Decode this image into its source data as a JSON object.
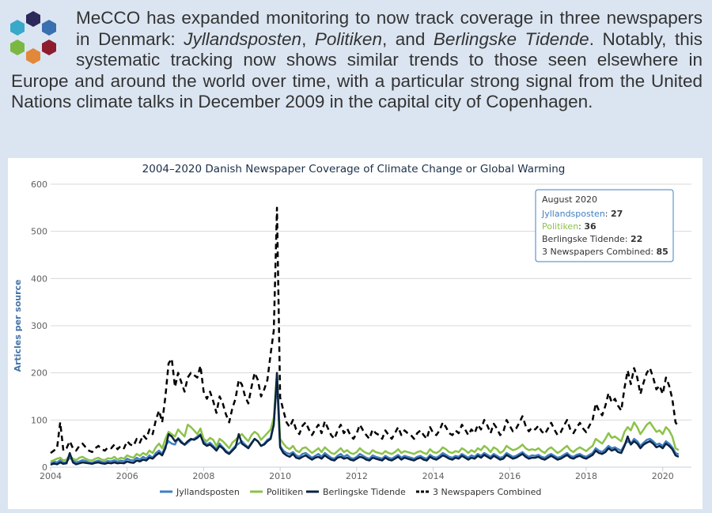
{
  "intro": {
    "p1": "MeCCO has expanded monitoring to now track coverage in three newspapers in Denmark: ",
    "paper1": "Jyllandsposten",
    "sep1": ", ",
    "paper2": "Politiken",
    "sep2": ", and ",
    "paper3": "Berlingske Tidende",
    "p2": ". Notably, this systematic tracking now shows similar trends to those seen elsewhere in Europe and around the world over time, with a particular strong signal from the United Nations climate talks in December 2009 in the capital city of Copenhagen."
  },
  "logo": {
    "colors": [
      "#2c2a5a",
      "#39a9c9",
      "#3a6fb0",
      "#7ab843",
      "#e2883a",
      "#8e1c2f"
    ]
  },
  "chart_data": {
    "type": "line",
    "title": "2004–2020 Danish Newspaper Coverage of Climate Change or Global Warming",
    "ylabel": "Articles per source",
    "xlabel": "",
    "xlim": [
      2004,
      2020.75
    ],
    "ylim": [
      0,
      600
    ],
    "x_ticks": [
      "2004",
      "2006",
      "2008",
      "2010",
      "2012",
      "2014",
      "2016",
      "2018",
      "2020"
    ],
    "y_ticks": [
      "0",
      "100",
      "200",
      "300",
      "400",
      "500",
      "600"
    ],
    "grid": "horizontal",
    "legend_position": "bottom",
    "x_note": "monthly values, January 2004 to August 2020 (approximate reading of the plotted lines)",
    "series": [
      {
        "name": "Jyllandsposten",
        "color": "#3f7fc4",
        "dash": "solid",
        "width": 2.5,
        "values": [
          8,
          12,
          10,
          15,
          9,
          11,
          20,
          14,
          10,
          12,
          15,
          13,
          10,
          9,
          12,
          14,
          11,
          10,
          13,
          12,
          15,
          11,
          14,
          12,
          18,
          15,
          14,
          20,
          16,
          22,
          18,
          25,
          20,
          30,
          35,
          28,
          45,
          55,
          50,
          48,
          62,
          55,
          47,
          52,
          58,
          60,
          65,
          70,
          55,
          48,
          52,
          45,
          38,
          50,
          42,
          35,
          30,
          38,
          45,
          50,
          55,
          48,
          42,
          52,
          60,
          55,
          45,
          50,
          58,
          62,
          95,
          180,
          45,
          35,
          30,
          28,
          32,
          25,
          22,
          28,
          30,
          25,
          20,
          24,
          28,
          22,
          30,
          25,
          20,
          18,
          24,
          28,
          22,
          26,
          20,
          18,
          22,
          28,
          24,
          20,
          18,
          25,
          22,
          20,
          18,
          24,
          20,
          18,
          22,
          26,
          20,
          24,
          22,
          20,
          18,
          22,
          24,
          20,
          18,
          26,
          22,
          20,
          24,
          30,
          26,
          22,
          20,
          24,
          22,
          28,
          24,
          20,
          25,
          22,
          28,
          24,
          30,
          26,
          22,
          28,
          24,
          20,
          22,
          30,
          26,
          22,
          24,
          28,
          32,
          26,
          22,
          25,
          24,
          26,
          22,
          20,
          25,
          28,
          24,
          20,
          22,
          26,
          30,
          24,
          22,
          26,
          28,
          24,
          22,
          26,
          30,
          40,
          35,
          32,
          38,
          45,
          40,
          42,
          38,
          35,
          48,
          55,
          50,
          60,
          55,
          45,
          52,
          58,
          60,
          55,
          48,
          50,
          45,
          55,
          50,
          42,
          30,
          27
        ]
      },
      {
        "name": "Politiken",
        "color": "#8cc24a",
        "dash": "solid",
        "width": 2.5,
        "values": [
          12,
          15,
          18,
          20,
          14,
          16,
          25,
          18,
          15,
          20,
          22,
          18,
          15,
          14,
          18,
          20,
          16,
          15,
          19,
          18,
          22,
          16,
          20,
          18,
          25,
          22,
          20,
          28,
          24,
          30,
          26,
          35,
          30,
          42,
          50,
          40,
          60,
          75,
          70,
          65,
          80,
          72,
          65,
          90,
          85,
          78,
          70,
          82,
          60,
          55,
          62,
          58,
          45,
          60,
          55,
          48,
          40,
          52,
          58,
          65,
          70,
          62,
          55,
          68,
          75,
          70,
          58,
          65,
          72,
          80,
          105,
          200,
          60,
          50,
          42,
          38,
          45,
          35,
          32,
          40,
          42,
          36,
          30,
          35,
          40,
          32,
          42,
          36,
          30,
          28,
          34,
          40,
          32,
          36,
          30,
          28,
          32,
          40,
          34,
          30,
          28,
          36,
          32,
          30,
          28,
          34,
          30,
          28,
          32,
          38,
          30,
          34,
          32,
          30,
          28,
          32,
          34,
          30,
          28,
          38,
          32,
          30,
          34,
          42,
          38,
          32,
          30,
          34,
          32,
          40,
          36,
          30,
          36,
          32,
          40,
          36,
          45,
          40,
          32,
          42,
          38,
          30,
          34,
          45,
          40,
          36,
          38,
          42,
          48,
          40,
          36,
          38,
          36,
          40,
          34,
          30,
          38,
          42,
          36,
          30,
          34,
          40,
          45,
          36,
          32,
          38,
          42,
          38,
          34,
          40,
          45,
          60,
          55,
          50,
          60,
          72,
          62,
          65,
          60,
          55,
          75,
          85,
          78,
          95,
          85,
          70,
          80,
          90,
          95,
          85,
          75,
          78,
          70,
          85,
          78,
          65,
          40,
          36
        ]
      },
      {
        "name": "Berlingske Tidende",
        "color": "#0c2340",
        "dash": "solid",
        "width": 2.5,
        "values": [
          5,
          8,
          6,
          10,
          7,
          8,
          30,
          10,
          6,
          8,
          10,
          9,
          8,
          7,
          9,
          10,
          8,
          7,
          9,
          8,
          10,
          8,
          9,
          8,
          12,
          10,
          9,
          14,
          12,
          16,
          14,
          20,
          18,
          25,
          30,
          25,
          40,
          70,
          65,
          55,
          60,
          52,
          48,
          55,
          60,
          58,
          62,
          68,
          50,
          45,
          48,
          42,
          35,
          45,
          40,
          32,
          28,
          35,
          42,
          70,
          50,
          45,
          40,
          50,
          60,
          55,
          45,
          48,
          55,
          60,
          90,
          200,
          42,
          30,
          25,
          22,
          28,
          20,
          18,
          22,
          25,
          20,
          16,
          20,
          22,
          18,
          25,
          20,
          16,
          14,
          20,
          22,
          18,
          20,
          16,
          14,
          18,
          22,
          20,
          16,
          14,
          20,
          18,
          16,
          14,
          20,
          16,
          14,
          18,
          22,
          16,
          20,
          18,
          16,
          14,
          18,
          20,
          16,
          14,
          22,
          18,
          16,
          20,
          25,
          22,
          18,
          16,
          20,
          18,
          24,
          20,
          16,
          20,
          18,
          24,
          20,
          26,
          22,
          18,
          24,
          20,
          16,
          18,
          26,
          22,
          18,
          20,
          24,
          28,
          22,
          18,
          20,
          20,
          22,
          18,
          16,
          20,
          24,
          20,
          16,
          18,
          22,
          26,
          20,
          18,
          22,
          24,
          20,
          18,
          22,
          26,
          35,
          30,
          28,
          32,
          40,
          35,
          38,
          32,
          30,
          45,
          65,
          48,
          55,
          50,
          40,
          48,
          52,
          55,
          50,
          42,
          45,
          40,
          50,
          45,
          38,
          25,
          22
        ]
      },
      {
        "name": "3 Newspapers Combined",
        "color": "#000000",
        "dash": "7,5",
        "width": 2.5,
        "values": [
          30,
          35,
          40,
          95,
          35,
          40,
          55,
          40,
          35,
          45,
          50,
          42,
          35,
          32,
          40,
          45,
          38,
          35,
          42,
          40,
          48,
          38,
          45,
          40,
          55,
          48,
          45,
          60,
          52,
          68,
          60,
          80,
          70,
          100,
          120,
          95,
          150,
          220,
          230,
          170,
          200,
          180,
          160,
          190,
          200,
          195,
          190,
          215,
          160,
          145,
          160,
          140,
          115,
          150,
          135,
          112,
          95,
          125,
          145,
          185,
          175,
          150,
          135,
          170,
          200,
          185,
          150,
          165,
          185,
          240,
          290,
          550,
          148,
          120,
          95,
          85,
          100,
          80,
          70,
          88,
          95,
          80,
          68,
          80,
          90,
          72,
          97,
          82,
          68,
          60,
          78,
          90,
          72,
          82,
          68,
          60,
          72,
          90,
          78,
          68,
          60,
          80,
          72,
          68,
          60,
          78,
          68,
          60,
          72,
          85,
          68,
          78,
          72,
          68,
          60,
          72,
          78,
          68,
          60,
          85,
          72,
          68,
          78,
          95,
          85,
          72,
          68,
          78,
          72,
          90,
          80,
          68,
          80,
          72,
          90,
          80,
          100,
          88,
          72,
          92,
          82,
          68,
          74,
          100,
          88,
          76,
          82,
          94,
          108,
          88,
          76,
          84,
          80,
          88,
          76,
          70,
          82,
          94,
          80,
          68,
          74,
          88,
          100,
          80,
          72,
          84,
          94,
          82,
          74,
          88,
          100,
          135,
          120,
          110,
          130,
          157,
          137,
          145,
          130,
          120,
          168,
          205,
          176,
          210,
          190,
          155,
          180,
          200,
          210,
          190,
          165,
          173,
          155,
          190,
          173,
          145,
          95,
          85
        ]
      }
    ],
    "tooltip": {
      "header": "August 2020",
      "rows": [
        {
          "label": "Jyllandsposten",
          "value": "27",
          "color": "#3f7fc4"
        },
        {
          "label": "Politiken",
          "value": "36",
          "color": "#8cc24a"
        },
        {
          "label": "Berlingske Tidende",
          "value": "22",
          "color": "#333333"
        },
        {
          "label": "3 Newspapers Combined",
          "value": "85",
          "color": "#333333"
        }
      ]
    }
  }
}
